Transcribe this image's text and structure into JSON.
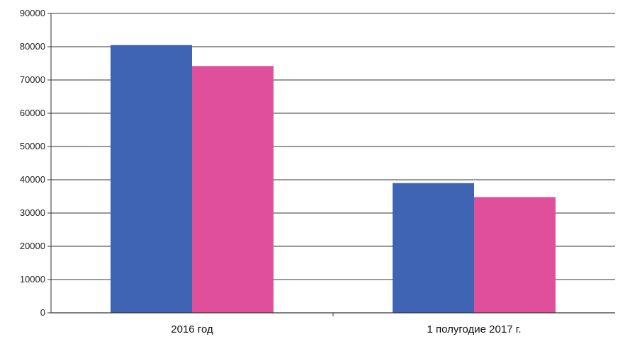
{
  "chart_data": {
    "type": "bar",
    "categories": [
      "2016 год",
      "1 полугодие 2017 г."
    ],
    "series": [
      {
        "values": [
          80500,
          39000
        ],
        "color": "#3f64b4"
      },
      {
        "values": [
          74200,
          34800
        ],
        "color": "#e0509a"
      }
    ],
    "yticks": [
      "0",
      "10000",
      "20000",
      "30000",
      "40000",
      "50000",
      "60000",
      "70000",
      "80000",
      "90000"
    ],
    "ylim": [
      0,
      90000
    ],
    "grid": true,
    "title": "",
    "xlabel": "",
    "ylabel": ""
  }
}
